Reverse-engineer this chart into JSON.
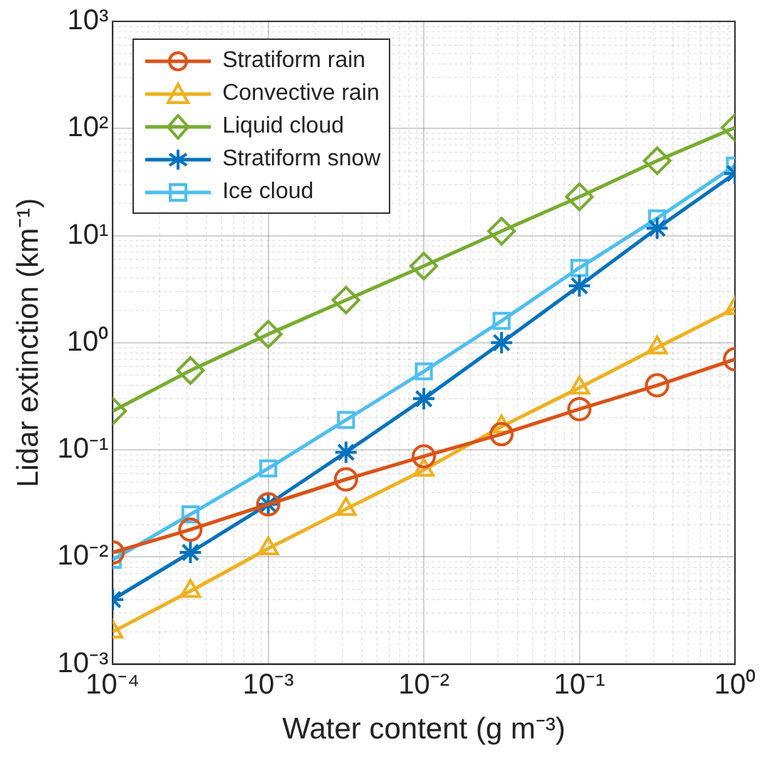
{
  "chart_data": {
    "type": "line",
    "xlabel": "Water content (g m⁻³)",
    "ylabel": "Lidar extinction (km⁻¹)",
    "x": [
      0.0001,
      0.000316,
      0.001,
      0.00316,
      0.01,
      0.0316,
      0.1,
      0.316,
      1
    ],
    "series": [
      {
        "name": "Stratiform rain",
        "color": "#d95319",
        "marker": "circle",
        "values": [
          0.011,
          0.018,
          0.031,
          0.053,
          0.087,
          0.14,
          0.24,
          0.4,
          0.7
        ]
      },
      {
        "name": "Convective rain",
        "color": "#edb120",
        "marker": "triangle",
        "values": [
          0.002,
          0.0048,
          0.012,
          0.028,
          0.065,
          0.165,
          0.38,
          0.9,
          2.1
        ]
      },
      {
        "name": "Liquid cloud",
        "color": "#77ac30",
        "marker": "diamond",
        "values": [
          0.23,
          0.55,
          1.2,
          2.5,
          5.2,
          11,
          23,
          50,
          102
        ]
      },
      {
        "name": "Stratiform snow",
        "color": "#0072bd",
        "marker": "cross",
        "values": [
          0.004,
          0.011,
          0.031,
          0.095,
          0.3,
          1.0,
          3.4,
          11.7,
          38
        ]
      },
      {
        "name": "Ice cloud",
        "color": "#4dbeee",
        "marker": "square",
        "values": [
          0.0094,
          0.025,
          0.067,
          0.19,
          0.54,
          1.6,
          5.0,
          14.5,
          45
        ]
      }
    ],
    "log": "xy",
    "xlim": [
      0.0001,
      1
    ],
    "ylim": [
      0.001,
      1000
    ],
    "xticks": [
      {
        "value": 0.0001,
        "label": "10⁻⁴"
      },
      {
        "value": 0.001,
        "label": "10⁻³"
      },
      {
        "value": 0.01,
        "label": "10⁻²"
      },
      {
        "value": 0.1,
        "label": "10⁻¹"
      },
      {
        "value": 1,
        "label": "10⁰"
      }
    ],
    "yticks": [
      {
        "value": 0.001,
        "label": "10⁻³"
      },
      {
        "value": 0.01,
        "label": "10⁻²"
      },
      {
        "value": 0.1,
        "label": "10⁻¹"
      },
      {
        "value": 1,
        "label": "10⁰"
      },
      {
        "value": 10,
        "label": "10¹"
      },
      {
        "value": 100,
        "label": "10²"
      },
      {
        "value": 1000,
        "label": "10³"
      }
    ],
    "grid": true,
    "legend": "top left",
    "line_style": "solid"
  }
}
